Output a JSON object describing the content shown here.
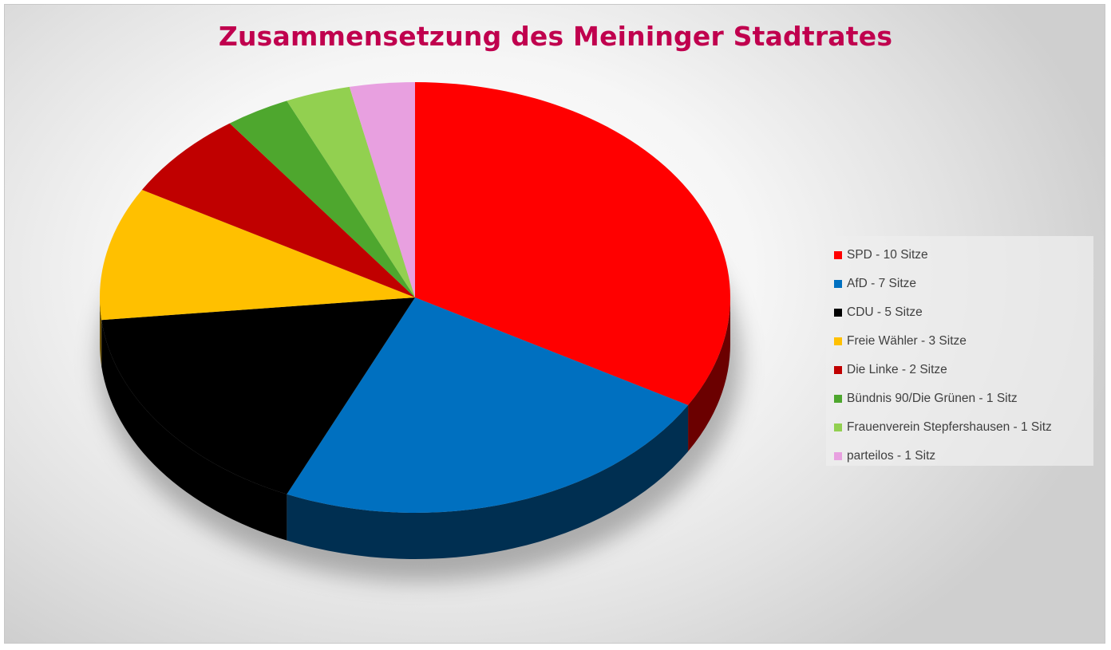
{
  "chart_data": {
    "type": "pie",
    "title": "Zusammensetzung des Meininger Stadtrates",
    "legend_position": "right",
    "slices": [
      {
        "label": "SPD - 10 Sitze",
        "value": 10,
        "color": "#ff0000"
      },
      {
        "label": "AfD - 7 Sitze",
        "value": 7,
        "color": "#0070c0"
      },
      {
        "label": "CDU - 5 Sitze",
        "value": 5,
        "color": "#000000"
      },
      {
        "label": "Freie Wähler - 3 Sitze",
        "value": 3,
        "color": "#ffc000"
      },
      {
        "label": "Die Linke - 2 Sitze",
        "value": 2,
        "color": "#c00000"
      },
      {
        "label": "Bündnis 90/Die Grünen - 1 Sitz",
        "value": 1,
        "color": "#4ea72e"
      },
      {
        "label": "Frauenverein Stepfershausen - 1 Sitz",
        "value": 1,
        "color": "#92d050"
      },
      {
        "label": "parteilos - 1 Sitz",
        "value": 1,
        "color": "#e8a0e0"
      }
    ]
  }
}
